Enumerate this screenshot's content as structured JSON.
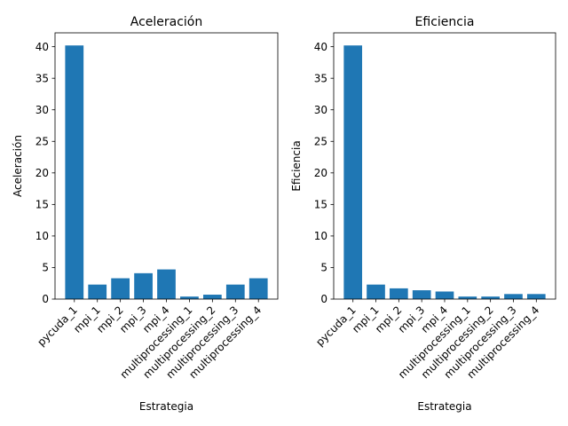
{
  "chart_data": [
    {
      "type": "bar",
      "title": "Aceleración",
      "xlabel": "Estrategia",
      "ylabel": "Aceleración",
      "categories": [
        "pycuda_1",
        "mpi_1",
        "mpi_2",
        "mpi_3",
        "mpi_4",
        "multiprocessing_1",
        "multiprocessing_2",
        "multiprocessing_3",
        "multiprocessing_4"
      ],
      "values": [
        40.2,
        2.3,
        3.3,
        4.1,
        4.7,
        0.4,
        0.7,
        2.3,
        3.3
      ],
      "ylim": [
        0,
        42.2
      ],
      "yticks": [
        0,
        5,
        10,
        15,
        20,
        25,
        30,
        35,
        40
      ],
      "bar_color": "#1f77b4",
      "grid": false,
      "legend": "none"
    },
    {
      "type": "bar",
      "title": "Eficiencia",
      "xlabel": "Estrategia",
      "ylabel": "Eficiencia",
      "categories": [
        "pycuda_1",
        "mpi_1",
        "mpi_2",
        "mpi_3",
        "mpi_4",
        "multiprocessing_1",
        "multiprocessing_2",
        "multiprocessing_3",
        "multiprocessing_4"
      ],
      "values": [
        40.2,
        2.3,
        1.7,
        1.4,
        1.2,
        0.4,
        0.4,
        0.8,
        0.8
      ],
      "ylim": [
        0,
        42.2
      ],
      "yticks": [
        0,
        5,
        10,
        15,
        20,
        25,
        30,
        35,
        40
      ],
      "bar_color": "#1f77b4",
      "grid": false,
      "legend": "none"
    }
  ]
}
